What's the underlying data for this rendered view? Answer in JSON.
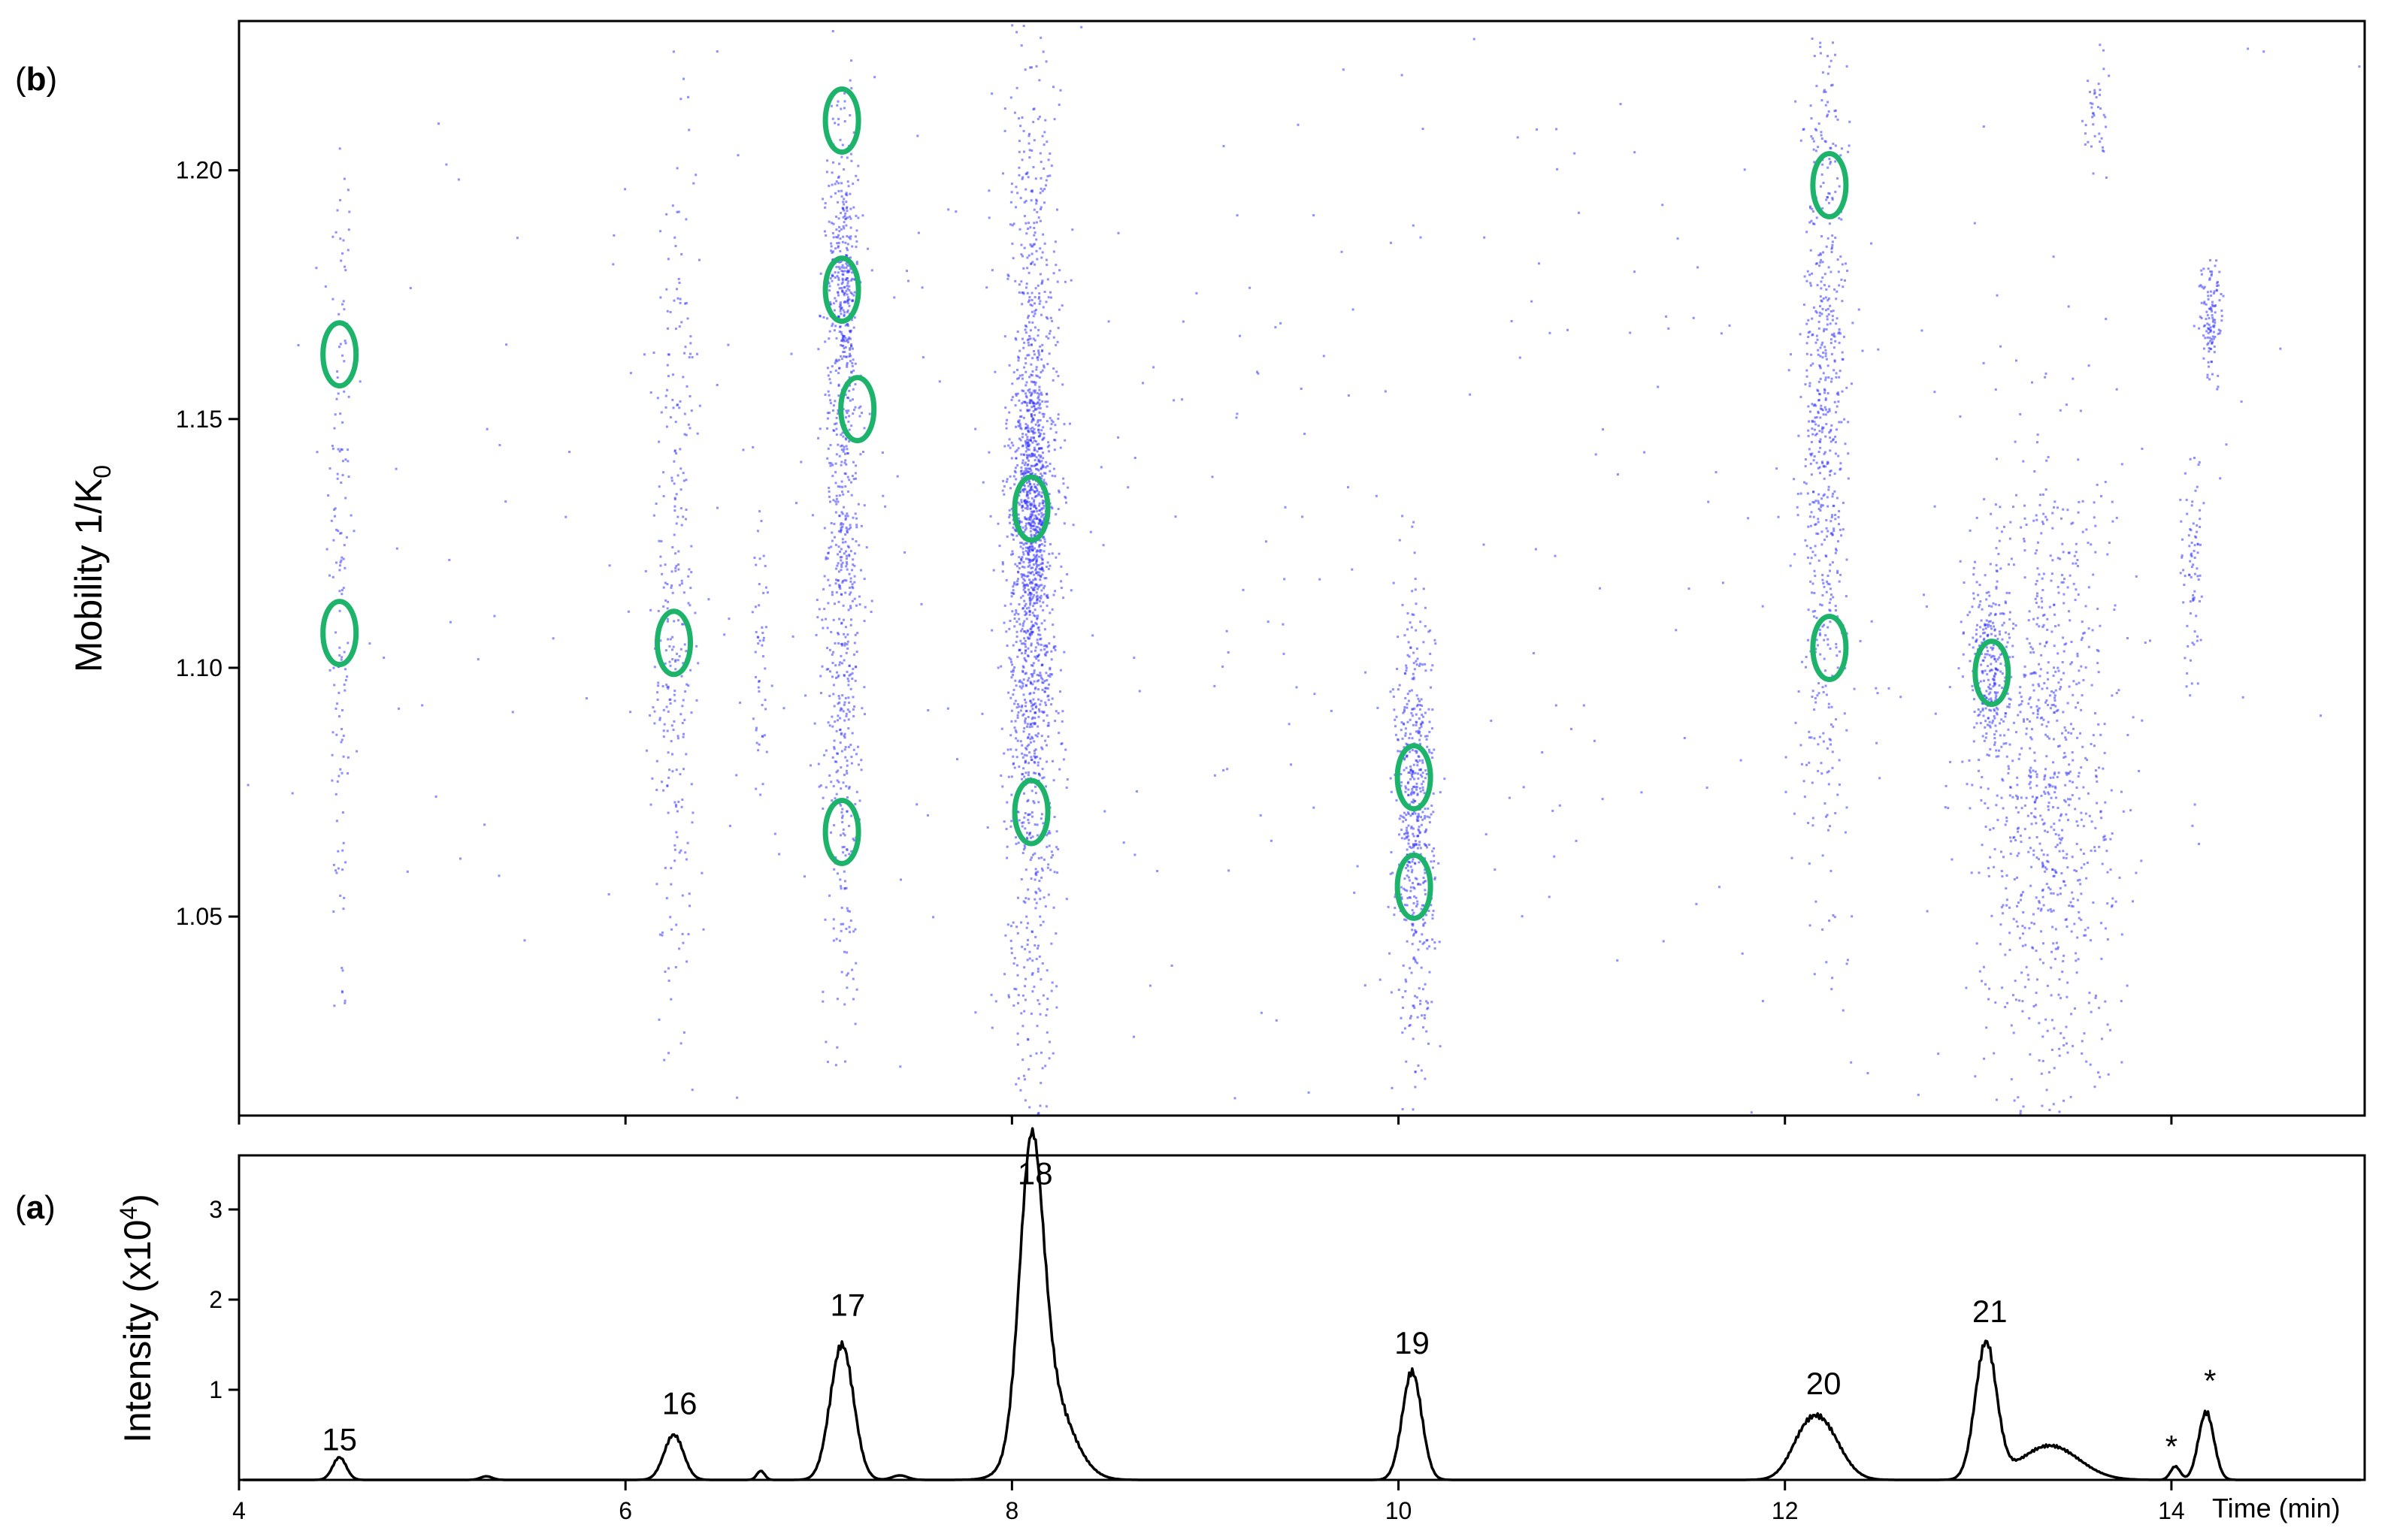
{
  "chart_data": [
    {
      "panel": "b",
      "type": "scatter",
      "ylabel": "Mobility 1/K",
      "ylabel_sub": "0",
      "xlim": [
        4,
        15
      ],
      "ylim": [
        1.01,
        1.23
      ],
      "yticks": [
        "1.05",
        "1.10",
        "1.15",
        "1.20"
      ],
      "grid": false,
      "point_color": "#3333ff",
      "marker_color": "#1db36b",
      "clusters": [
        {
          "x": 4.52,
          "y": 1.12,
          "xsd": 0.03,
          "ysd": 0.05,
          "n": 150
        },
        {
          "x": 6.25,
          "y": 1.11,
          "xsd": 0.05,
          "ysd": 0.045,
          "n": 300
        },
        {
          "x": 6.7,
          "y": 1.1,
          "xsd": 0.03,
          "ysd": 0.015,
          "n": 50
        },
        {
          "x": 7.12,
          "y": 1.12,
          "xsd": 0.05,
          "ysd": 0.045,
          "n": 650
        },
        {
          "x": 7.12,
          "y": 1.178,
          "xsd": 0.04,
          "ysd": 0.015,
          "n": 280
        },
        {
          "x": 8.1,
          "y": 1.12,
          "xsd": 0.07,
          "ysd": 0.05,
          "n": 1400
        },
        {
          "x": 8.1,
          "y": 1.13,
          "xsd": 0.04,
          "ysd": 0.013,
          "n": 450
        },
        {
          "x": 10.08,
          "y": 1.07,
          "xsd": 0.05,
          "ysd": 0.022,
          "n": 550
        },
        {
          "x": 12.2,
          "y": 1.15,
          "xsd": 0.06,
          "ysd": 0.04,
          "n": 650
        },
        {
          "x": 13.05,
          "y": 1.1,
          "xsd": 0.05,
          "ysd": 0.01,
          "n": 250
        },
        {
          "x": 13.35,
          "y": 1.08,
          "xsd": 0.18,
          "ysd": 0.035,
          "n": 900
        },
        {
          "x": 14.2,
          "y": 1.17,
          "xsd": 0.03,
          "ysd": 0.006,
          "n": 120
        },
        {
          "x": 14.1,
          "y": 1.12,
          "xsd": 0.03,
          "ysd": 0.012,
          "n": 80
        },
        {
          "x": 13.6,
          "y": 1.21,
          "xsd": 0.03,
          "ysd": 0.006,
          "n": 40
        },
        {
          "x": 9.5,
          "y": 1.12,
          "xsd": 3.0,
          "ysd": 0.06,
          "n": 450
        }
      ],
      "circled_features": [
        {
          "x": 4.52,
          "y": 1.163
        },
        {
          "x": 4.52,
          "y": 1.107
        },
        {
          "x": 6.25,
          "y": 1.105
        },
        {
          "x": 7.12,
          "y": 1.21
        },
        {
          "x": 7.12,
          "y": 1.176
        },
        {
          "x": 7.2,
          "y": 1.152
        },
        {
          "x": 7.12,
          "y": 1.067
        },
        {
          "x": 8.1,
          "y": 1.132
        },
        {
          "x": 8.1,
          "y": 1.071
        },
        {
          "x": 10.08,
          "y": 1.078
        },
        {
          "x": 10.08,
          "y": 1.056
        },
        {
          "x": 12.23,
          "y": 1.197
        },
        {
          "x": 12.23,
          "y": 1.104
        },
        {
          "x": 13.07,
          "y": 1.099
        }
      ]
    },
    {
      "panel": "a",
      "type": "line",
      "ylabel": "Intensity (x10",
      "ylabel_sup": "4",
      "ylabel_end": ")",
      "xlabel": "Time (min)",
      "xlim": [
        4,
        15
      ],
      "ylim": [
        0,
        3.6
      ],
      "xticks": [
        "4",
        "6",
        "8",
        "10",
        "12",
        "14"
      ],
      "yticks": [
        "1",
        "2",
        "3"
      ],
      "grid": false,
      "line_color": "#000000",
      "peaks": [
        {
          "x": 4.52,
          "height": 0.25,
          "width": 0.035
        },
        {
          "x": 5.28,
          "height": 0.04,
          "width": 0.03
        },
        {
          "x": 6.25,
          "height": 0.5,
          "width": 0.05
        },
        {
          "x": 6.7,
          "height": 0.1,
          "width": 0.02
        },
        {
          "x": 7.12,
          "height": 1.5,
          "width": 0.06
        },
        {
          "x": 7.42,
          "height": 0.05,
          "width": 0.04
        },
        {
          "x": 8.1,
          "height": 3.05,
          "width": 0.06
        },
        {
          "x": 8.18,
          "height": 1.0,
          "width": 0.12
        },
        {
          "x": 10.07,
          "height": 1.2,
          "width": 0.05
        },
        {
          "x": 12.18,
          "height": 0.65,
          "width": 0.1
        },
        {
          "x": 12.08,
          "height": 0.15,
          "width": 0.07
        },
        {
          "x": 13.04,
          "height": 1.5,
          "width": 0.055
        },
        {
          "x": 13.37,
          "height": 0.38,
          "width": 0.15
        },
        {
          "x": 14.02,
          "height": 0.15,
          "width": 0.025
        },
        {
          "x": 14.18,
          "height": 0.75,
          "width": 0.04
        }
      ],
      "annotations": [
        {
          "text": "15",
          "x": 4.52,
          "y": 0.33
        },
        {
          "text": "16",
          "x": 6.28,
          "y": 0.73
        },
        {
          "text": "17",
          "x": 7.15,
          "y": 1.82
        },
        {
          "text": "18",
          "x": 8.12,
          "y": 3.28
        },
        {
          "text": "19",
          "x": 10.07,
          "y": 1.4
        },
        {
          "text": "20",
          "x": 12.2,
          "y": 0.95
        },
        {
          "text": "21",
          "x": 13.06,
          "y": 1.75
        },
        {
          "text": "*",
          "x": 14.0,
          "y": 0.25
        },
        {
          "text": "*",
          "x": 14.2,
          "y": 0.98
        }
      ]
    }
  ],
  "panel_labels": {
    "top": "b",
    "bottom": "a"
  },
  "panel_brackets": {
    "open": "(",
    "close": ")"
  }
}
